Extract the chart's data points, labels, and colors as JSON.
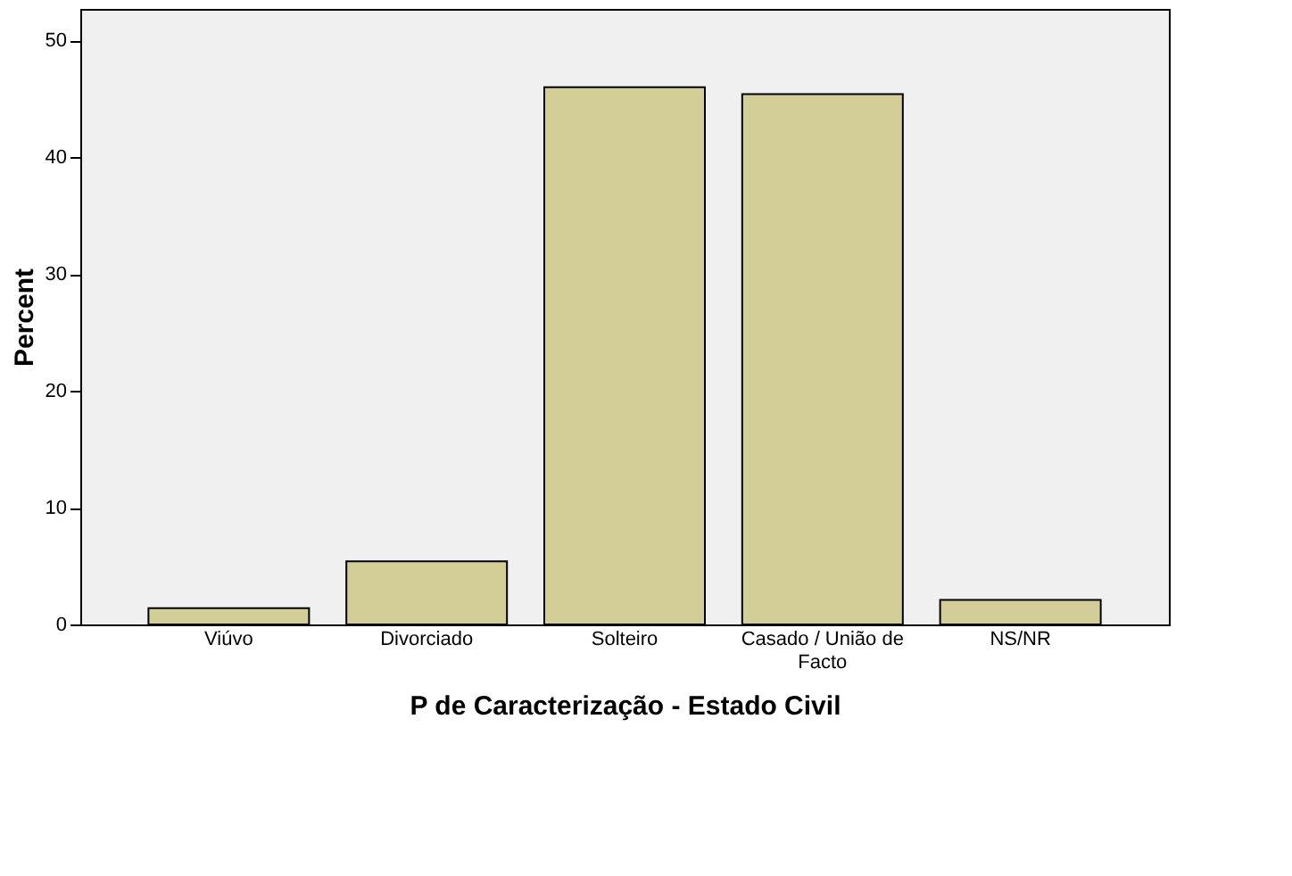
{
  "chart_data": {
    "type": "bar",
    "xlabel": "P de Caracterização - Estado Civil",
    "ylabel": "Percent",
    "categories": [
      "Viúvo",
      "Divorciado",
      "Solteiro",
      "Casado / União de Facto",
      "NS/NR"
    ],
    "values": [
      1.4,
      5.4,
      46.0,
      45.4,
      2.1
    ],
    "color": "#d3ce97",
    "ylim": [
      0,
      52.7
    ],
    "yticks": [
      0,
      10,
      20,
      30,
      40,
      50
    ],
    "grid": false
  }
}
